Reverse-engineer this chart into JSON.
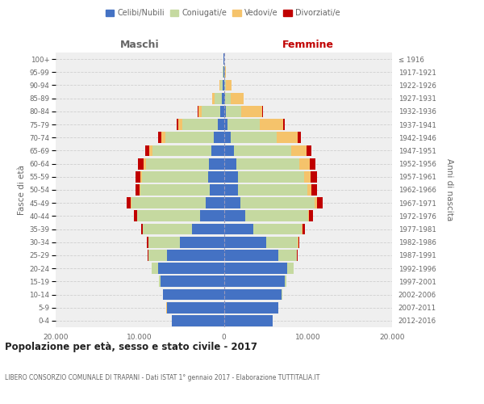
{
  "age_groups": [
    "0-4",
    "5-9",
    "10-14",
    "15-19",
    "20-24",
    "25-29",
    "30-34",
    "35-39",
    "40-44",
    "45-49",
    "50-54",
    "55-59",
    "60-64",
    "65-69",
    "70-74",
    "75-79",
    "80-84",
    "85-89",
    "90-94",
    "95-99",
    "100+"
  ],
  "birth_years": [
    "2012-2016",
    "2007-2011",
    "2002-2006",
    "1997-2001",
    "1992-1996",
    "1987-1991",
    "1982-1986",
    "1977-1981",
    "1972-1976",
    "1967-1971",
    "1962-1966",
    "1957-1961",
    "1952-1956",
    "1947-1951",
    "1942-1946",
    "1937-1941",
    "1932-1936",
    "1927-1931",
    "1922-1926",
    "1917-1921",
    "≤ 1916"
  ],
  "male": {
    "celibi": [
      6200,
      6800,
      7200,
      7500,
      7800,
      6800,
      5200,
      3800,
      2800,
      2200,
      1700,
      1900,
      1800,
      1500,
      1200,
      700,
      400,
      200,
      100,
      50,
      30
    ],
    "coniugati": [
      5,
      10,
      30,
      200,
      800,
      2200,
      3800,
      5800,
      7500,
      8800,
      8200,
      7800,
      7500,
      7000,
      5800,
      4200,
      2200,
      900,
      300,
      80,
      20
    ],
    "vedovi": [
      1,
      1,
      2,
      3,
      5,
      5,
      5,
      10,
      20,
      50,
      100,
      220,
      280,
      350,
      450,
      500,
      450,
      250,
      80,
      20,
      5
    ],
    "divorziati": [
      1,
      1,
      2,
      5,
      20,
      50,
      120,
      220,
      350,
      480,
      550,
      600,
      600,
      500,
      320,
      180,
      80,
      30,
      10,
      5,
      2
    ]
  },
  "female": {
    "nubili": [
      5800,
      6500,
      6900,
      7200,
      7500,
      6500,
      5000,
      3500,
      2500,
      2000,
      1700,
      1700,
      1500,
      1200,
      800,
      450,
      250,
      150,
      80,
      40,
      20
    ],
    "coniugate": [
      5,
      10,
      30,
      200,
      800,
      2200,
      3800,
      5800,
      7500,
      8800,
      8200,
      7800,
      7500,
      6800,
      5500,
      3800,
      1800,
      700,
      200,
      60,
      15
    ],
    "vedove": [
      1,
      1,
      2,
      3,
      5,
      15,
      30,
      80,
      150,
      300,
      500,
      800,
      1200,
      1800,
      2500,
      2800,
      2500,
      1500,
      600,
      150,
      30
    ],
    "divorziate": [
      1,
      1,
      2,
      5,
      20,
      60,
      150,
      300,
      480,
      650,
      700,
      750,
      680,
      580,
      380,
      200,
      80,
      30,
      15,
      5,
      2
    ]
  },
  "colors": {
    "celibi": "#4472c4",
    "coniugati": "#c5d9a0",
    "vedovi": "#f5c36b",
    "divorziati": "#c00000"
  },
  "xlim": 20000,
  "title": "Popolazione per età, sesso e stato civile - 2017",
  "subtitle": "LIBERO CONSORZIO COMUNALE DI TRAPANI - Dati ISTAT 1° gennaio 2017 - Elaborazione TUTTITALIA.IT",
  "ylabel_left": "Fasce di età",
  "ylabel_right": "Anni di nascita",
  "header_male": "Maschi",
  "header_female": "Femmine",
  "legend_labels": [
    "Celibi/Nubili",
    "Coniugati/e",
    "Vedovi/e",
    "Divorziati/e"
  ],
  "bg_color": "#ffffff",
  "plot_bg": "#efefef",
  "grid_color": "#cccccc",
  "text_color": "#666666",
  "xtick_labels": [
    "20.000",
    "10.000",
    "0",
    "10.000",
    "20.000"
  ]
}
